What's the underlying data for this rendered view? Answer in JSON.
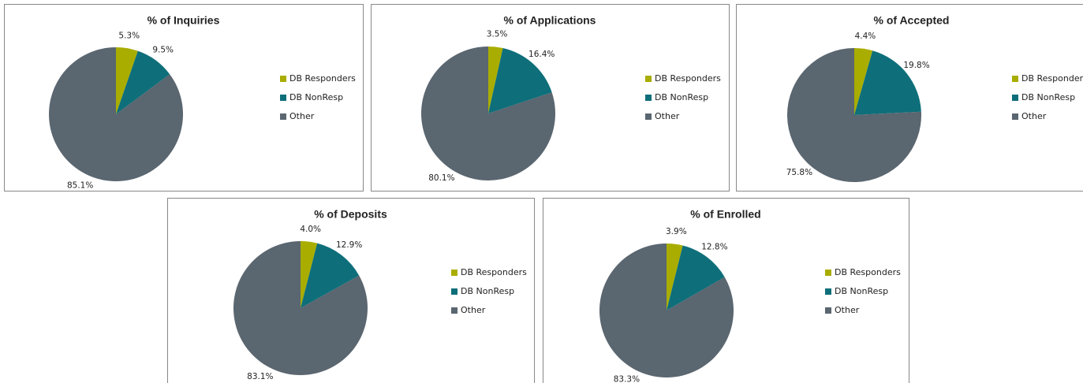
{
  "chart_data": [
    {
      "type": "pie",
      "title": "% of Inquiries",
      "categories": [
        "DB Responders",
        "DB NonResp",
        "Other"
      ],
      "values": [
        5.3,
        9.5,
        85.1
      ],
      "value_labels": [
        "5.3%",
        "9.5%",
        "85.1%"
      ],
      "colors": [
        "#a9ad00",
        "#0e6f7a",
        "#5a6670"
      ]
    },
    {
      "type": "pie",
      "title": "% of Applications",
      "categories": [
        "DB Responders",
        "DB NonResp",
        "Other"
      ],
      "values": [
        3.5,
        16.4,
        80.1
      ],
      "value_labels": [
        "3.5%",
        "16.4%",
        "80.1%"
      ],
      "colors": [
        "#a9ad00",
        "#0e6f7a",
        "#5a6670"
      ]
    },
    {
      "type": "pie",
      "title": "% of Accepted",
      "categories": [
        "DB Responders",
        "DB NonResp",
        "Other"
      ],
      "values": [
        4.4,
        19.8,
        75.8
      ],
      "value_labels": [
        "4.4%",
        "19.8%",
        "75.8%"
      ],
      "colors": [
        "#a9ad00",
        "#0e6f7a",
        "#5a6670"
      ]
    },
    {
      "type": "pie",
      "title": "% of Deposits",
      "categories": [
        "DB Responders",
        "DB NonResp",
        "Other"
      ],
      "values": [
        4.0,
        12.9,
        83.1
      ],
      "value_labels": [
        "4.0%",
        "12.9%",
        "83.1%"
      ],
      "colors": [
        "#a9ad00",
        "#0e6f7a",
        "#5a6670"
      ]
    },
    {
      "type": "pie",
      "title": "% of Enrolled",
      "categories": [
        "DB Responders",
        "DB NonResp",
        "Other"
      ],
      "values": [
        3.9,
        12.8,
        83.3
      ],
      "value_labels": [
        "3.9%",
        "12.8%",
        "83.3%"
      ],
      "colors": [
        "#a9ad00",
        "#0e6f7a",
        "#5a6670"
      ]
    }
  ]
}
